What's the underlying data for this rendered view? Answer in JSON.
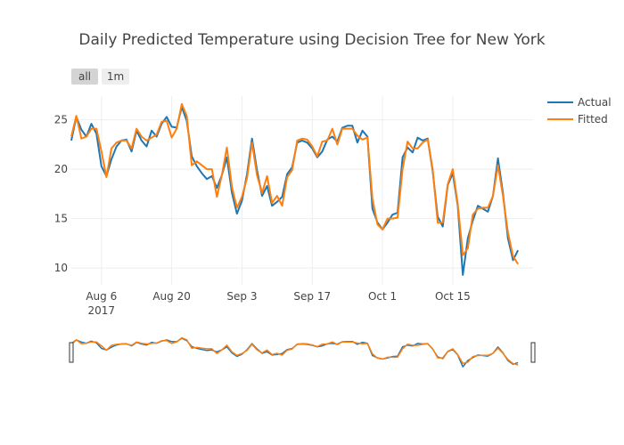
{
  "range_selector": {
    "buttons": [
      {
        "label": "all"
      },
      {
        "label": "1m"
      }
    ]
  },
  "colors": {
    "actual": "#1f77b4",
    "fitted": "#ff7f0e",
    "grid": "#eeeeee"
  },
  "chart_data": {
    "type": "line",
    "title": "Daily Predicted Temperature using Decision Tree for New York",
    "xlabel": "",
    "ylabel": "",
    "x_start": "2017-07-31",
    "x_end": "2017-10-31",
    "x_ticks": [
      {
        "date": "2017-08-06",
        "label": "Aug 6",
        "sublabel": "2017"
      },
      {
        "date": "2017-08-20",
        "label": "Aug 20",
        "sublabel": ""
      },
      {
        "date": "2017-09-03",
        "label": "Sep 3",
        "sublabel": ""
      },
      {
        "date": "2017-09-17",
        "label": "Sep 17",
        "sublabel": ""
      },
      {
        "date": "2017-10-01",
        "label": "Oct 1",
        "sublabel": ""
      },
      {
        "date": "2017-10-15",
        "label": "Oct 15",
        "sublabel": ""
      }
    ],
    "y_ticks": [
      10,
      15,
      20,
      25
    ],
    "ylim": [
      8.3,
      27.4
    ],
    "grid": true,
    "legend": "top-right",
    "series": [
      {
        "name": "Actual",
        "values": [
          [
            "2017-07-31",
            22.9
          ],
          [
            "2017-08-01",
            25.3
          ],
          [
            "2017-08-02",
            24.0
          ],
          [
            "2017-08-03",
            23.3
          ],
          [
            "2017-08-04",
            24.6
          ],
          [
            "2017-08-05",
            23.6
          ],
          [
            "2017-08-06",
            20.3
          ],
          [
            "2017-08-07",
            19.3
          ],
          [
            "2017-08-08",
            21.0
          ],
          [
            "2017-08-09",
            22.3
          ],
          [
            "2017-08-10",
            22.9
          ],
          [
            "2017-08-11",
            23.0
          ],
          [
            "2017-08-12",
            21.8
          ],
          [
            "2017-08-13",
            23.9
          ],
          [
            "2017-08-14",
            22.9
          ],
          [
            "2017-08-15",
            22.3
          ],
          [
            "2017-08-16",
            23.9
          ],
          [
            "2017-08-17",
            23.3
          ],
          [
            "2017-08-18",
            24.6
          ],
          [
            "2017-08-19",
            25.3
          ],
          [
            "2017-08-20",
            24.3
          ],
          [
            "2017-08-21",
            24.2
          ],
          [
            "2017-08-22",
            26.3
          ],
          [
            "2017-08-23",
            24.9
          ],
          [
            "2017-08-24",
            21.3
          ],
          [
            "2017-08-25",
            20.3
          ],
          [
            "2017-08-26",
            19.6
          ],
          [
            "2017-08-27",
            19.0
          ],
          [
            "2017-08-28",
            19.3
          ],
          [
            "2017-08-29",
            18.1
          ],
          [
            "2017-08-30",
            19.4
          ],
          [
            "2017-08-31",
            21.2
          ],
          [
            "2017-09-01",
            17.6
          ],
          [
            "2017-09-02",
            15.5
          ],
          [
            "2017-09-03",
            16.8
          ],
          [
            "2017-09-04",
            19.5
          ],
          [
            "2017-09-05",
            23.1
          ],
          [
            "2017-09-06",
            19.9
          ],
          [
            "2017-09-07",
            17.3
          ],
          [
            "2017-09-08",
            18.3
          ],
          [
            "2017-09-09",
            16.3
          ],
          [
            "2017-09-10",
            16.7
          ],
          [
            "2017-09-11",
            17.2
          ],
          [
            "2017-09-12",
            19.5
          ],
          [
            "2017-09-13",
            20.2
          ],
          [
            "2017-09-14",
            22.7
          ],
          [
            "2017-09-15",
            22.9
          ],
          [
            "2017-09-16",
            22.7
          ],
          [
            "2017-09-17",
            22.1
          ],
          [
            "2017-09-18",
            21.2
          ],
          [
            "2017-09-19",
            21.8
          ],
          [
            "2017-09-20",
            23.0
          ],
          [
            "2017-09-21",
            23.3
          ],
          [
            "2017-09-22",
            22.8
          ],
          [
            "2017-09-23",
            24.2
          ],
          [
            "2017-09-24",
            24.4
          ],
          [
            "2017-09-25",
            24.4
          ],
          [
            "2017-09-26",
            22.7
          ],
          [
            "2017-09-27",
            23.9
          ],
          [
            "2017-09-28",
            23.3
          ],
          [
            "2017-09-29",
            16.0
          ],
          [
            "2017-09-30",
            14.6
          ],
          [
            "2017-10-01",
            13.9
          ],
          [
            "2017-10-02",
            14.6
          ],
          [
            "2017-10-03",
            15.4
          ],
          [
            "2017-10-04",
            15.6
          ],
          [
            "2017-10-05",
            21.2
          ],
          [
            "2017-10-06",
            22.2
          ],
          [
            "2017-10-07",
            21.7
          ],
          [
            "2017-10-08",
            23.2
          ],
          [
            "2017-10-09",
            22.9
          ],
          [
            "2017-10-10",
            23.1
          ],
          [
            "2017-10-11",
            19.8
          ],
          [
            "2017-10-12",
            15.2
          ],
          [
            "2017-10-13",
            14.2
          ],
          [
            "2017-10-14",
            18.4
          ],
          [
            "2017-10-15",
            19.6
          ],
          [
            "2017-10-16",
            16.3
          ],
          [
            "2017-10-17",
            9.3
          ],
          [
            "2017-10-18",
            13.0
          ],
          [
            "2017-10-19",
            14.8
          ],
          [
            "2017-10-20",
            16.3
          ],
          [
            "2017-10-21",
            16.0
          ],
          [
            "2017-10-22",
            15.7
          ],
          [
            "2017-10-23",
            17.3
          ],
          [
            "2017-10-24",
            21.1
          ],
          [
            "2017-10-25",
            17.6
          ],
          [
            "2017-10-26",
            13.0
          ],
          [
            "2017-10-27",
            10.8
          ],
          [
            "2017-10-28",
            11.8
          ]
        ]
      },
      {
        "name": "Fitted",
        "values": [
          [
            "2017-07-31",
            23.3
          ],
          [
            "2017-08-01",
            25.4
          ],
          [
            "2017-08-02",
            23.1
          ],
          [
            "2017-08-03",
            23.3
          ],
          [
            "2017-08-04",
            24.1
          ],
          [
            "2017-08-05",
            24.1
          ],
          [
            "2017-08-06",
            21.8
          ],
          [
            "2017-08-07",
            19.2
          ],
          [
            "2017-08-08",
            22.1
          ],
          [
            "2017-08-09",
            22.7
          ],
          [
            "2017-08-10",
            22.9
          ],
          [
            "2017-08-11",
            22.9
          ],
          [
            "2017-08-12",
            22.1
          ],
          [
            "2017-08-13",
            24.1
          ],
          [
            "2017-08-14",
            23.3
          ],
          [
            "2017-08-15",
            22.9
          ],
          [
            "2017-08-16",
            23.2
          ],
          [
            "2017-08-17",
            23.5
          ],
          [
            "2017-08-18",
            24.8
          ],
          [
            "2017-08-19",
            24.9
          ],
          [
            "2017-08-20",
            23.2
          ],
          [
            "2017-08-21",
            24.1
          ],
          [
            "2017-08-22",
            26.6
          ],
          [
            "2017-08-23",
            25.4
          ],
          [
            "2017-08-24",
            20.4
          ],
          [
            "2017-08-25",
            20.8
          ],
          [
            "2017-08-26",
            20.4
          ],
          [
            "2017-08-27",
            20.0
          ],
          [
            "2017-08-28",
            20.0
          ],
          [
            "2017-08-29",
            17.2
          ],
          [
            "2017-08-30",
            19.4
          ],
          [
            "2017-08-31",
            22.2
          ],
          [
            "2017-09-01",
            18.2
          ],
          [
            "2017-09-02",
            16.1
          ],
          [
            "2017-09-03",
            17.2
          ],
          [
            "2017-09-04",
            19.1
          ],
          [
            "2017-09-05",
            22.7
          ],
          [
            "2017-09-06",
            19.4
          ],
          [
            "2017-09-07",
            17.6
          ],
          [
            "2017-09-08",
            19.3
          ],
          [
            "2017-09-09",
            16.6
          ],
          [
            "2017-09-10",
            17.3
          ],
          [
            "2017-09-11",
            16.3
          ],
          [
            "2017-09-12",
            19.2
          ],
          [
            "2017-09-13",
            19.9
          ],
          [
            "2017-09-14",
            22.9
          ],
          [
            "2017-09-15",
            23.1
          ],
          [
            "2017-09-16",
            23.0
          ],
          [
            "2017-09-17",
            22.3
          ],
          [
            "2017-09-18",
            21.3
          ],
          [
            "2017-09-19",
            22.8
          ],
          [
            "2017-09-20",
            22.9
          ],
          [
            "2017-09-21",
            24.1
          ],
          [
            "2017-09-22",
            22.5
          ],
          [
            "2017-09-23",
            24.1
          ],
          [
            "2017-09-24",
            24.1
          ],
          [
            "2017-09-25",
            24.1
          ],
          [
            "2017-09-26",
            23.4
          ],
          [
            "2017-09-27",
            23.0
          ],
          [
            "2017-09-28",
            23.2
          ],
          [
            "2017-09-29",
            17.0
          ],
          [
            "2017-09-30",
            14.4
          ],
          [
            "2017-10-01",
            13.9
          ],
          [
            "2017-10-02",
            15.0
          ],
          [
            "2017-10-03",
            15.0
          ],
          [
            "2017-10-04",
            15.1
          ],
          [
            "2017-10-05",
            20.0
          ],
          [
            "2017-10-06",
            22.8
          ],
          [
            "2017-10-07",
            22.1
          ],
          [
            "2017-10-08",
            22.1
          ],
          [
            "2017-10-09",
            22.7
          ],
          [
            "2017-10-10",
            23.0
          ],
          [
            "2017-10-11",
            20.0
          ],
          [
            "2017-10-12",
            14.6
          ],
          [
            "2017-10-13",
            14.6
          ],
          [
            "2017-10-14",
            18.5
          ],
          [
            "2017-10-15",
            20.0
          ],
          [
            "2017-10-16",
            16.5
          ],
          [
            "2017-10-17",
            11.3
          ],
          [
            "2017-10-18",
            12.0
          ],
          [
            "2017-10-19",
            15.4
          ],
          [
            "2017-10-20",
            16.0
          ],
          [
            "2017-10-21",
            16.1
          ],
          [
            "2017-10-22",
            16.1
          ],
          [
            "2017-10-23",
            17.3
          ],
          [
            "2017-10-24",
            20.4
          ],
          [
            "2017-10-25",
            17.3
          ],
          [
            "2017-10-26",
            13.6
          ],
          [
            "2017-10-27",
            11.2
          ],
          [
            "2017-10-28",
            10.4
          ]
        ]
      }
    ]
  }
}
